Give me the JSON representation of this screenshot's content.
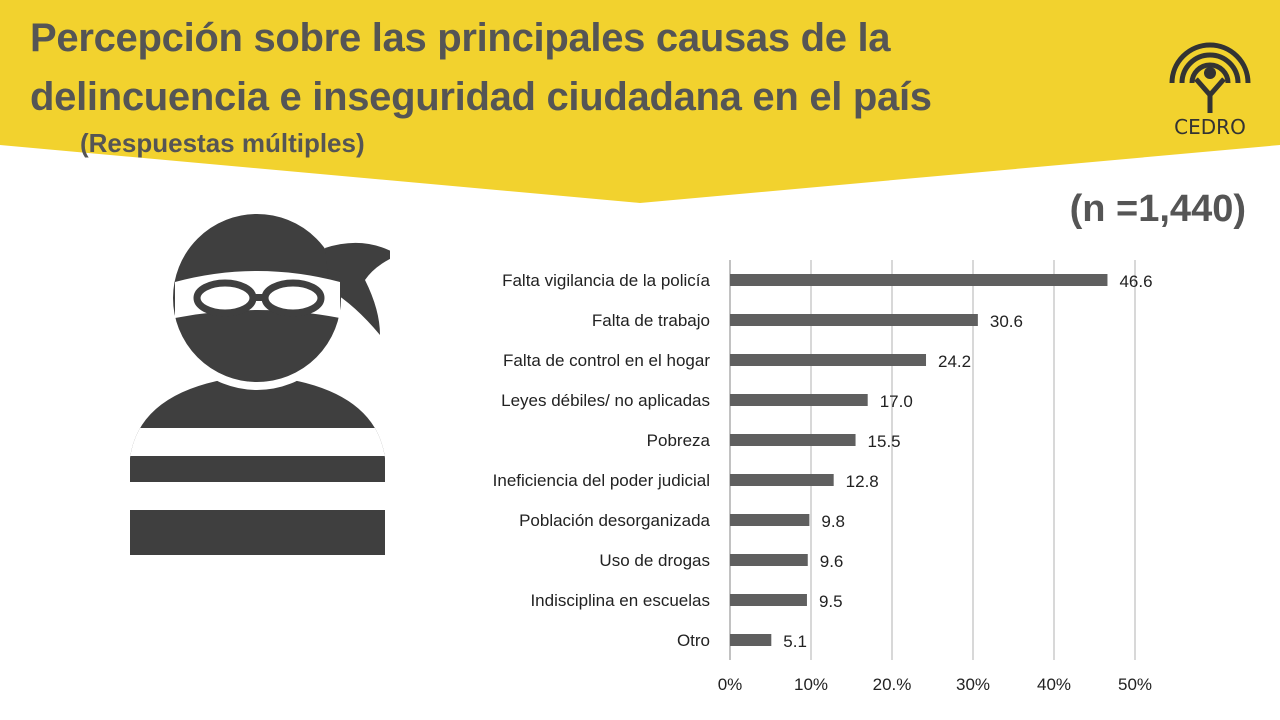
{
  "header": {
    "title_line1": "Percepción sobre las principales causas de la",
    "title_line2": "delincuencia e inseguridad ciudadana en el país",
    "subtitle": "(Respuestas múltiples)",
    "sample_size": "(n =1,440)"
  },
  "logo": {
    "text": "CEDRO",
    "icon": "cedro-logo-icon"
  },
  "illustration": {
    "icon": "masked-thief-icon"
  },
  "colors": {
    "banner": "#F2D22E",
    "bar": "#5F5F5F",
    "text": "#555555",
    "icon": "#3F3F3F",
    "grid": "#BFBFBF"
  },
  "chart_data": {
    "type": "bar",
    "orientation": "horizontal",
    "categories": [
      "Falta vigilancia de la policía",
      "Falta de trabajo",
      "Falta de control en el hogar",
      "Leyes débiles/ no aplicadas",
      "Pobreza",
      "Ineficiencia del poder judicial",
      "Población desorganizada",
      "Uso de drogas",
      "Indisciplina en escuelas",
      "Otro"
    ],
    "values": [
      46.6,
      30.6,
      24.2,
      17.0,
      15.5,
      12.8,
      9.8,
      9.6,
      9.5,
      5.1
    ],
    "value_labels": [
      "46.6",
      "30.6",
      "24.2",
      "17.0",
      "15.5",
      "12.8",
      "9.8",
      "9.6",
      "9.5",
      "5.1"
    ],
    "xlim": [
      0,
      50
    ],
    "xticks": [
      0,
      10,
      20,
      30,
      40,
      50
    ],
    "xtick_labels": [
      "0%",
      "10%",
      "20.%",
      "30%",
      "40%",
      "50%"
    ],
    "grid": true,
    "legend": "none"
  }
}
